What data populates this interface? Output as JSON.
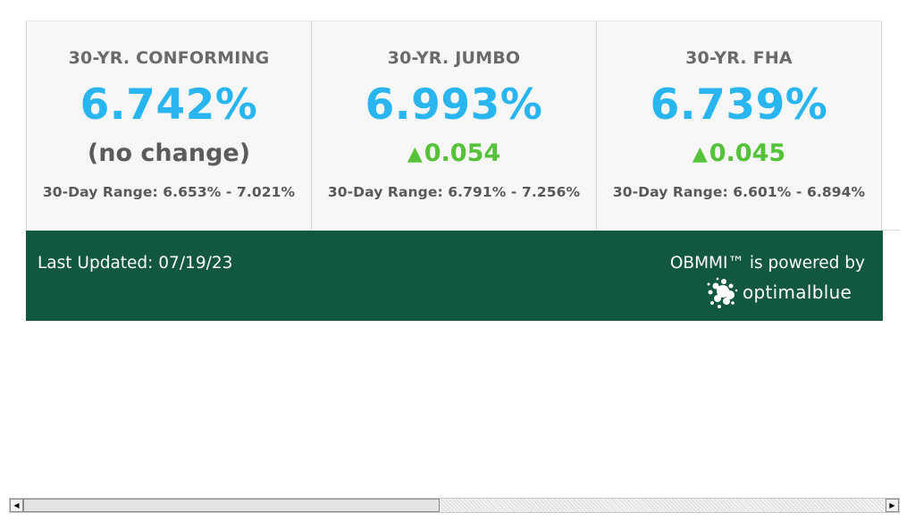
{
  "rates": [
    {
      "title": "30-YR. CONFORMING",
      "rate": "6.742%",
      "change": "(no change)",
      "direction": "none",
      "range": "30-Day Range: 6.653% - 7.021%"
    },
    {
      "title": "30-YR. JUMBO",
      "rate": "6.993%",
      "change": "0.054",
      "direction": "up",
      "range": "30-Day Range: 6.791% - 7.256%"
    },
    {
      "title": "30-YR. FHA",
      "rate": "6.739%",
      "change": "0.045",
      "direction": "up",
      "range": "30-Day Range: 6.601% - 6.894%"
    }
  ],
  "footer": {
    "last_updated": "Last Updated: 07/19/23",
    "powered_by": "OBMMI™ is powered by",
    "logo_text": "optimalblue",
    "logo_mark": "®"
  },
  "icons": {
    "up_arrow": "▲",
    "scroll_left": "◀",
    "scroll_right": "▶"
  },
  "colors": {
    "rate": "#29b6f0",
    "up": "#55c23a",
    "footer_bg": "#12573f"
  }
}
